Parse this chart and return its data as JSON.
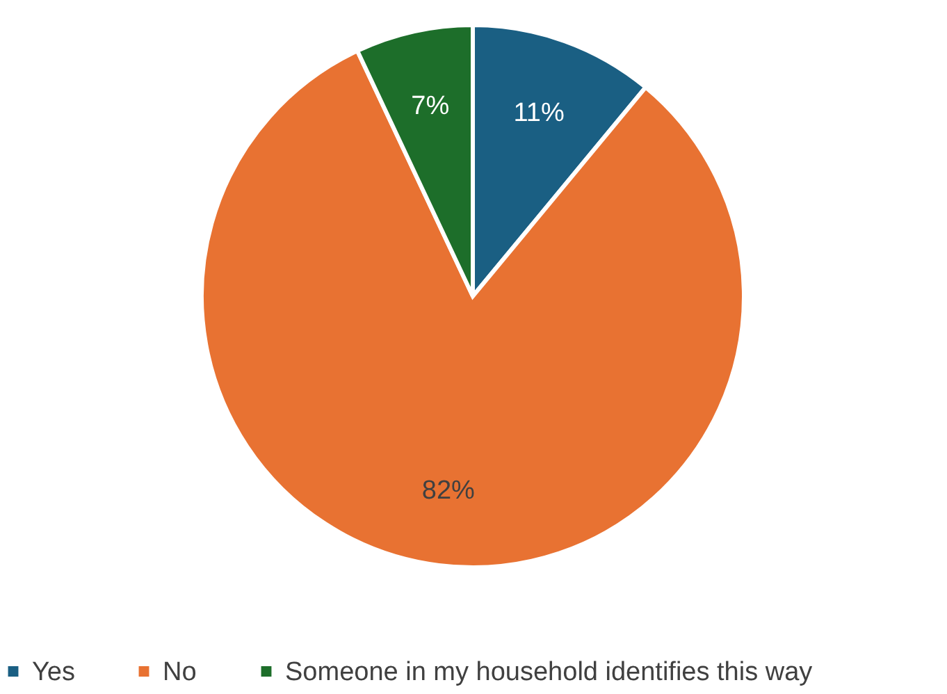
{
  "chart_data": {
    "type": "pie",
    "categories": [
      "Yes",
      "No",
      "Someone in my household identifies this way"
    ],
    "values": [
      11,
      82,
      7
    ],
    "colors": [
      "#1a5f83",
      "#e87232",
      "#1d6e2a"
    ],
    "value_labels": [
      "11%",
      "82%",
      "7%"
    ],
    "legend": "bottom"
  }
}
